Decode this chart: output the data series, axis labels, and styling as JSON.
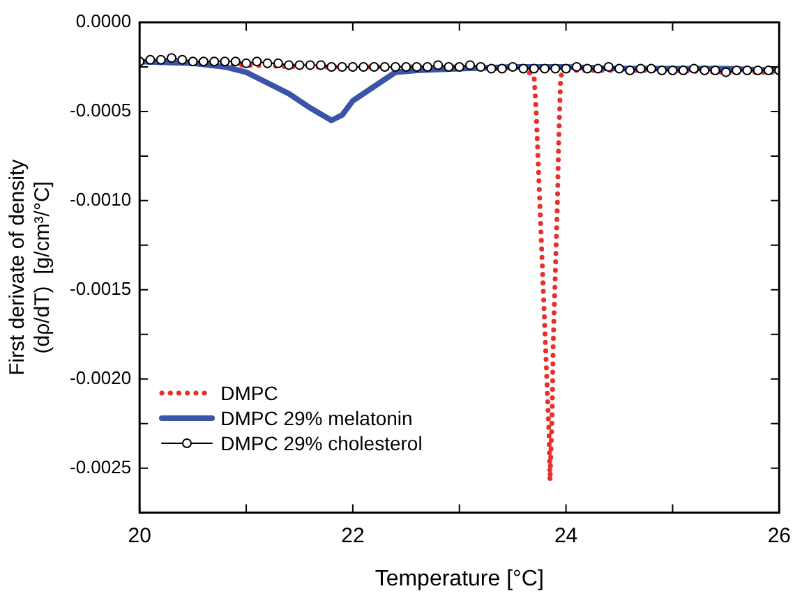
{
  "chart_data": {
    "type": "line",
    "xlabel": "Temperature [°C]",
    "ylabel": [
      "First derivate of density",
      "(dρ/dT)  [g/cm³/°C]"
    ],
    "xlim": [
      20,
      26
    ],
    "xticks": [
      20,
      {
        "value": 21,
        "label": null
      },
      22,
      {
        "value": 23,
        "label": null
      },
      24,
      {
        "value": 25,
        "label": null
      },
      26
    ],
    "ylim": [
      -0.00275,
      0
    ],
    "yticks": [
      {
        "value": 0,
        "label": "0.0000"
      },
      {
        "value": -0.00025,
        "label": null
      },
      {
        "value": -0.0005,
        "label": "-0.0005"
      },
      {
        "value": -0.00075,
        "label": null
      },
      {
        "value": -0.001,
        "label": "-0.0010"
      },
      {
        "value": -0.00125,
        "label": null
      },
      {
        "value": -0.0015,
        "label": "-0.0015"
      },
      {
        "value": -0.00175,
        "label": null
      },
      {
        "value": -0.002,
        "label": "-0.0020"
      },
      {
        "value": -0.00225,
        "label": null
      },
      {
        "value": -0.0025,
        "label": "-0.0025"
      }
    ],
    "grid": false,
    "legend": "bottom left",
    "series": [
      {
        "name": "DMPC",
        "color": "#e8302a",
        "line_style": "dotted",
        "marker": "none",
        "x": [
          20,
          20.5,
          21,
          21.5,
          22,
          22.5,
          23,
          23.4,
          23.6,
          23.7,
          23.72,
          23.74,
          23.76,
          23.78,
          23.8,
          23.82,
          23.84,
          23.85,
          23.87,
          23.88,
          23.9,
          23.92,
          23.93,
          23.95,
          24,
          24.5,
          25,
          25.5,
          26
        ],
        "values": [
          -0.00022,
          -0.00023,
          -0.00024,
          -0.00025,
          -0.00025,
          -0.00025,
          -0.00025,
          -0.00026,
          -0.00026,
          -0.0003,
          -0.0005,
          -0.0008,
          -0.0011,
          -0.0014,
          -0.0017,
          -0.002,
          -0.0023,
          -0.00257,
          -0.0022,
          -0.0018,
          -0.0014,
          -0.001,
          -0.0007,
          -0.0003,
          -0.00027,
          -0.00027,
          -0.00027,
          -0.00028,
          -0.00028
        ]
      },
      {
        "name": "DMPC 29% melatonin",
        "color": "#3a55a8",
        "line_style": "solid",
        "marker": "none",
        "x": [
          20,
          20.5,
          20.8,
          21,
          21.2,
          21.4,
          21.6,
          21.8,
          21.9,
          22,
          22.2,
          22.4,
          22.6,
          23,
          23.5,
          24,
          24.5,
          25,
          25.5,
          26
        ],
        "values": [
          -0.00022,
          -0.00023,
          -0.00025,
          -0.00028,
          -0.00034,
          -0.0004,
          -0.00048,
          -0.00055,
          -0.00052,
          -0.00044,
          -0.00036,
          -0.00028,
          -0.00027,
          -0.00026,
          -0.00025,
          -0.00025,
          -0.00026,
          -0.00026,
          -0.00026,
          -0.00027
        ]
      },
      {
        "name": "DMPC 29% cholesterol",
        "color": "#000000",
        "line_style": "solid",
        "marker": "circle",
        "x": [
          20,
          20.1,
          20.2,
          20.3,
          20.4,
          20.5,
          20.6,
          20.7,
          20.8,
          20.9,
          21,
          21.1,
          21.2,
          21.3,
          21.4,
          21.5,
          21.6,
          21.7,
          21.8,
          21.9,
          22,
          22.1,
          22.2,
          22.3,
          22.4,
          22.5,
          22.6,
          22.7,
          22.8,
          22.9,
          23,
          23.1,
          23.2,
          23.3,
          23.4,
          23.5,
          23.6,
          23.7,
          23.8,
          23.9,
          24,
          24.1,
          24.2,
          24.3,
          24.4,
          24.5,
          24.6,
          24.7,
          24.8,
          24.9,
          25,
          25.1,
          25.2,
          25.3,
          25.4,
          25.5,
          25.6,
          25.7,
          25.8,
          25.9,
          26
        ],
        "values": [
          -0.00022,
          -0.00021,
          -0.00021,
          -0.0002,
          -0.00021,
          -0.00022,
          -0.00022,
          -0.00022,
          -0.00022,
          -0.00022,
          -0.00023,
          -0.00022,
          -0.00023,
          -0.00023,
          -0.00024,
          -0.00024,
          -0.00024,
          -0.00024,
          -0.00025,
          -0.00025,
          -0.00025,
          -0.00025,
          -0.00025,
          -0.00025,
          -0.00025,
          -0.00025,
          -0.00025,
          -0.00025,
          -0.00024,
          -0.00025,
          -0.00025,
          -0.00024,
          -0.00025,
          -0.00026,
          -0.00026,
          -0.00025,
          -0.00026,
          -0.00026,
          -0.00026,
          -0.00026,
          -0.00026,
          -0.00025,
          -0.00026,
          -0.00026,
          -0.00025,
          -0.00026,
          -0.00027,
          -0.00026,
          -0.00026,
          -0.00027,
          -0.00027,
          -0.00027,
          -0.00026,
          -0.00027,
          -0.00027,
          -0.00028,
          -0.00027,
          -0.00027,
          -0.00027,
          -0.00027,
          -0.00027
        ]
      }
    ]
  }
}
